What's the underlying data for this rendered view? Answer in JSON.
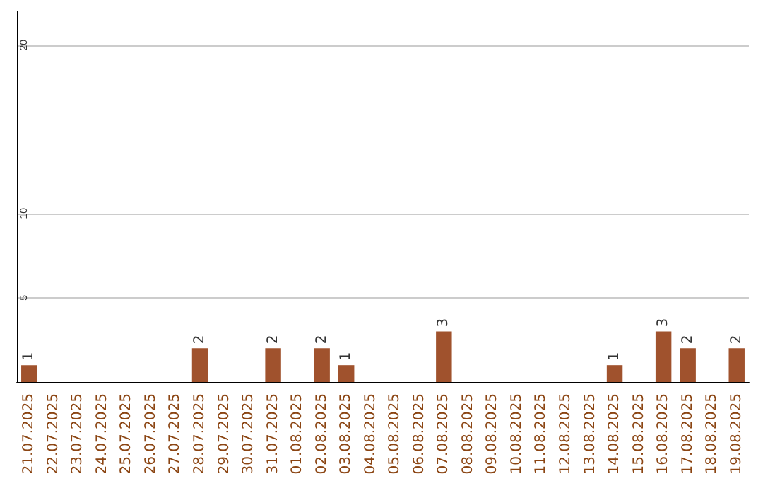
{
  "chart_data": {
    "type": "bar",
    "categories": [
      "21.07.2025",
      "22.07.2025",
      "23.07.2025",
      "24.07.2025",
      "25.07.2025",
      "26.07.2025",
      "27.07.2025",
      "28.07.2025",
      "29.07.2025",
      "30.07.2025",
      "31.07.2025",
      "01.08.2025",
      "02.08.2025",
      "03.08.2025",
      "04.08.2025",
      "05.08.2025",
      "06.08.2025",
      "07.08.2025",
      "08.08.2025",
      "09.08.2025",
      "10.08.2025",
      "11.08.2025",
      "12.08.2025",
      "13.08.2025",
      "14.08.2025",
      "15.08.2025",
      "16.08.2025",
      "17.08.2025",
      "18.08.2025",
      "19.08.2025"
    ],
    "values": [
      1,
      0,
      0,
      0,
      0,
      0,
      0,
      2,
      0,
      0,
      2,
      0,
      2,
      1,
      0,
      0,
      0,
      3,
      0,
      0,
      0,
      0,
      0,
      0,
      1,
      0,
      3,
      2,
      0,
      2
    ],
    "value_labels": [
      "1",
      null,
      null,
      null,
      null,
      null,
      null,
      "2",
      null,
      null,
      "2",
      null,
      "2",
      "1",
      null,
      null,
      null,
      "3",
      null,
      null,
      null,
      null,
      null,
      null,
      "1",
      null,
      "3",
      "2",
      null,
      "2"
    ],
    "color": "#a0522d",
    "ylim": [
      0,
      22
    ],
    "yticks": [
      5,
      10,
      20
    ],
    "grid": "y"
  }
}
